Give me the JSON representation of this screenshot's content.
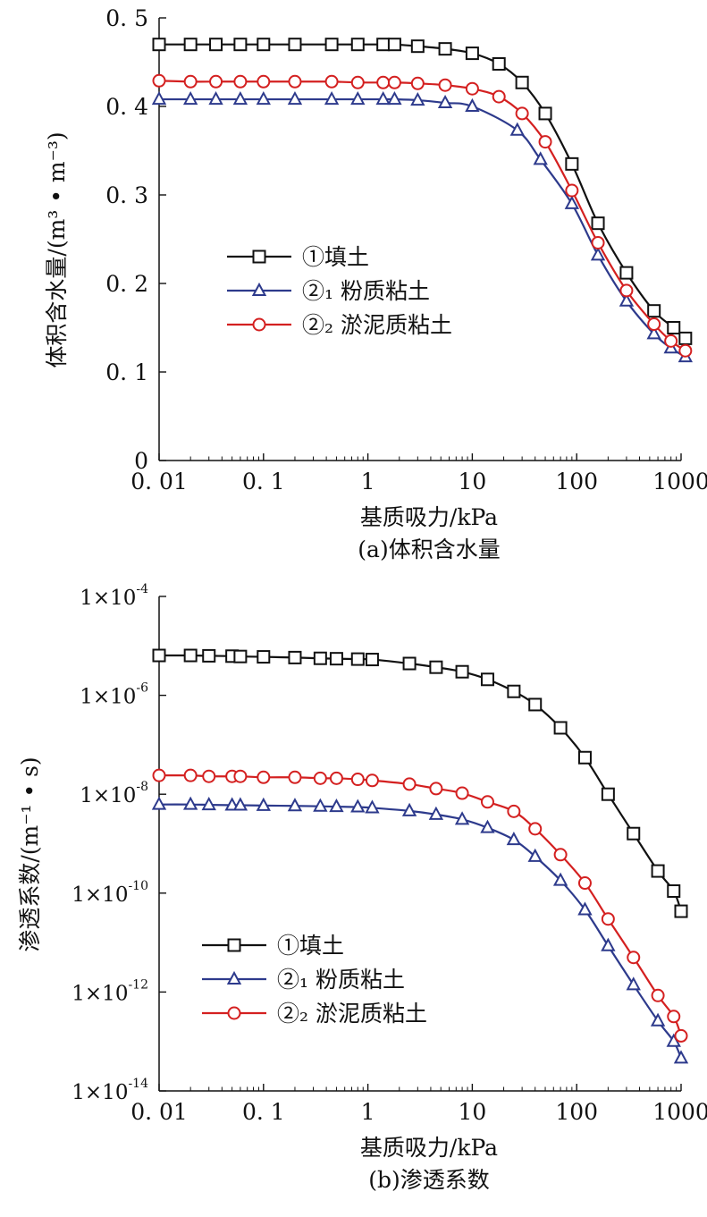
{
  "chart_data": [
    {
      "type": "line",
      "xscale": "log",
      "xlim": [
        0.01,
        1000
      ],
      "ylim": [
        0,
        0.5
      ],
      "xticks": [
        "0. 01",
        "0. 1",
        "1",
        "10",
        "100",
        "1000"
      ],
      "yticks": [
        "0",
        "0. 1",
        "0. 2",
        "0. 3",
        "0. 4",
        "0. 5"
      ],
      "xlabel": "基质吸力/kPa",
      "ylabel": "体积含水量/(m³ • m⁻³)",
      "caption": "(a)体积含水量",
      "legend_position": "center-left",
      "series": [
        {
          "name": "①填土",
          "color": "#111111",
          "marker": "square",
          "x": [
            0.01,
            0.02,
            0.035,
            0.06,
            0.1,
            0.2,
            0.45,
            0.8,
            1.4,
            1.8,
            3,
            5.5,
            10,
            18,
            30,
            50,
            90,
            160,
            300,
            550,
            850,
            1100
          ],
          "y": [
            0.47,
            0.47,
            0.47,
            0.47,
            0.47,
            0.47,
            0.47,
            0.47,
            0.47,
            0.47,
            0.468,
            0.465,
            0.46,
            0.448,
            0.427,
            0.392,
            0.335,
            0.268,
            0.212,
            0.169,
            0.15,
            0.138
          ]
        },
        {
          "name": "②₁ 粉质粘土",
          "color": "#2d3a8c",
          "marker": "triangle",
          "x": [
            0.01,
            0.02,
            0.035,
            0.06,
            0.1,
            0.2,
            0.45,
            0.8,
            1.4,
            1.8,
            3,
            5.5,
            10,
            27,
            45,
            90,
            160,
            300,
            550,
            800,
            1100
          ],
          "y": [
            0.408,
            0.408,
            0.408,
            0.408,
            0.408,
            0.408,
            0.408,
            0.408,
            0.408,
            0.408,
            0.407,
            0.404,
            0.4,
            0.373,
            0.34,
            0.29,
            0.232,
            0.18,
            0.143,
            0.127,
            0.117
          ]
        },
        {
          "name": "②₂ 淤泥质粘土",
          "color": "#d42020",
          "marker": "circle",
          "x": [
            0.01,
            0.02,
            0.035,
            0.06,
            0.1,
            0.2,
            0.45,
            0.8,
            1.4,
            1.8,
            3,
            5.5,
            10,
            18,
            30,
            50,
            90,
            160,
            300,
            550,
            800,
            1100
          ],
          "y": [
            0.429,
            0.428,
            0.428,
            0.428,
            0.428,
            0.428,
            0.428,
            0.427,
            0.427,
            0.427,
            0.426,
            0.424,
            0.42,
            0.411,
            0.392,
            0.36,
            0.305,
            0.246,
            0.192,
            0.154,
            0.135,
            0.124
          ]
        }
      ]
    },
    {
      "type": "line",
      "xscale": "log",
      "yscale": "log",
      "xlim": [
        0.01,
        1000
      ],
      "ylim": [
        1e-14,
        0.0001
      ],
      "xticks": [
        "0. 01",
        "0. 1",
        "1",
        "10",
        "100",
        "1000"
      ],
      "yticks": [
        {
          "base": "1×10",
          "exp": "-4"
        },
        {
          "base": "1×10",
          "exp": "-6"
        },
        {
          "base": "1×10",
          "exp": "-8"
        },
        {
          "base": "1×10",
          "exp": "-10"
        },
        {
          "base": "1×10",
          "exp": "-12"
        },
        {
          "base": "1×10",
          "exp": "-14"
        }
      ],
      "xlabel": "基质吸力/kPa",
      "ylabel": "渗透系数/(m⁻¹ • s)",
      "caption": "(b)渗透系数",
      "legend_position": "bottom-left",
      "series": [
        {
          "name": "①填土",
          "color": "#111111",
          "marker": "square",
          "x": [
            0.01,
            0.02,
            0.03,
            0.05,
            0.06,
            0.1,
            0.2,
            0.35,
            0.5,
            0.8,
            1.1,
            2.5,
            4.5,
            8,
            14,
            25,
            40,
            70,
            120,
            200,
            350,
            600,
            850,
            1000
          ],
          "y": [
            6.4e-06,
            6.4e-06,
            6.3e-06,
            6.2e-06,
            6.1e-06,
            6e-06,
            5.8e-06,
            5.6e-06,
            5.5e-06,
            5.4e-06,
            5.3e-06,
            4.4e-06,
            3.7e-06,
            3e-06,
            2.1e-06,
            1.2e-06,
            6.5e-07,
            2.2e-07,
            5.5e-08,
            1e-08,
            1.6e-09,
            2.8e-10,
            1.1e-10,
            4.3e-11
          ]
        },
        {
          "name": "②₁ 粉质粘土",
          "color": "#2d3a8c",
          "marker": "triangle",
          "x": [
            0.01,
            0.02,
            0.03,
            0.05,
            0.06,
            0.1,
            0.2,
            0.35,
            0.5,
            0.8,
            1.1,
            2.5,
            4.5,
            8,
            14,
            25,
            40,
            70,
            120,
            200,
            350,
            600,
            850,
            1000
          ],
          "y": [
            6.2e-09,
            6.2e-09,
            6.1e-09,
            6e-09,
            6e-09,
            5.9e-09,
            5.8e-09,
            5.7e-09,
            5.6e-09,
            5.5e-09,
            5.3e-09,
            4.6e-09,
            3.9e-09,
            3.1e-09,
            2.1e-09,
            1.2e-09,
            5.5e-10,
            1.8e-10,
            4.6e-11,
            8.6e-12,
            1.4e-12,
            2.6e-13,
            1e-13,
            4.6e-14
          ]
        },
        {
          "name": "②₂ 淤泥质粘土",
          "color": "#d42020",
          "marker": "circle",
          "x": [
            0.01,
            0.02,
            0.03,
            0.05,
            0.06,
            0.1,
            0.2,
            0.35,
            0.5,
            0.8,
            1.1,
            2.5,
            4.5,
            8,
            14,
            25,
            40,
            70,
            120,
            200,
            350,
            600,
            850,
            1000
          ],
          "y": [
            2.4e-08,
            2.4e-08,
            2.3e-08,
            2.3e-08,
            2.3e-08,
            2.2e-08,
            2.2e-08,
            2.1e-08,
            2.1e-08,
            2e-08,
            1.9e-08,
            1.6e-08,
            1.3e-08,
            1.05e-08,
            7e-09,
            4.5e-09,
            2e-09,
            6e-10,
            1.6e-10,
            3e-11,
            5e-12,
            8.5e-13,
            3.2e-13,
            1.3e-13
          ]
        }
      ]
    }
  ]
}
